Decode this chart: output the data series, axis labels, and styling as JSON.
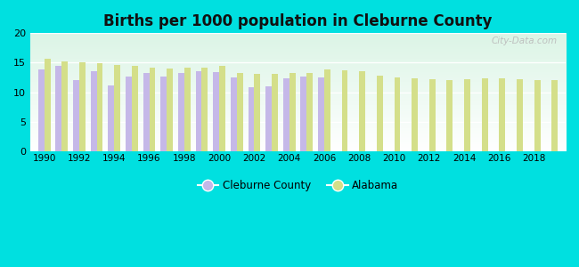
{
  "title": "Births per 1000 population in Cleburne County",
  "background_color": "#00e0e0",
  "cleburne_color": "#c5b8e8",
  "alabama_color": "#d4df8a",
  "years": [
    1990,
    1991,
    1992,
    1993,
    1994,
    1995,
    1996,
    1997,
    1998,
    1999,
    2000,
    2001,
    2002,
    2003,
    2004,
    2005,
    2006,
    2007,
    2008,
    2009,
    2010,
    2011,
    2012,
    2013,
    2014,
    2015,
    2016,
    2017,
    2018,
    2019
  ],
  "cleburne_values": [
    13.8,
    14.5,
    12.0,
    13.5,
    11.2,
    12.6,
    13.2,
    12.6,
    13.2,
    13.5,
    13.4,
    12.5,
    10.9,
    11.0,
    12.4,
    12.6,
    12.5,
    null,
    null,
    null,
    null,
    null,
    null,
    null,
    null,
    null,
    null,
    null,
    null,
    null
  ],
  "alabama_values": [
    15.7,
    15.2,
    15.1,
    14.9,
    14.6,
    14.4,
    14.1,
    14.0,
    14.1,
    14.1,
    14.4,
    13.2,
    13.1,
    13.1,
    13.2,
    13.3,
    13.8,
    13.7,
    13.6,
    12.8,
    12.5,
    12.3,
    12.2,
    12.1,
    12.2,
    12.3,
    12.3,
    12.2,
    12.1,
    12.1
  ],
  "ylim": [
    0,
    20
  ],
  "yticks": [
    0,
    5,
    10,
    15,
    20
  ],
  "xtick_years": [
    1990,
    1992,
    1994,
    1996,
    1998,
    2000,
    2002,
    2004,
    2006,
    2008,
    2010,
    2012,
    2014,
    2016,
    2018
  ],
  "watermark": "City-Data.com",
  "legend_cleburne": "Cleburne County",
  "legend_alabama": "Alabama"
}
